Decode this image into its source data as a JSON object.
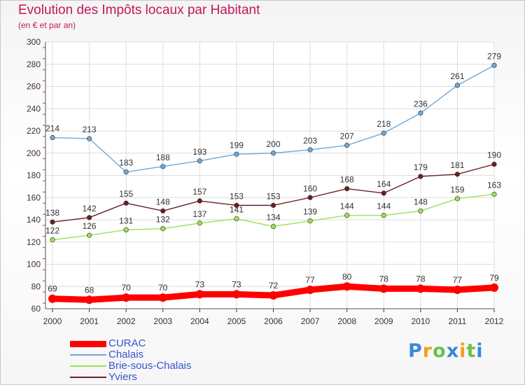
{
  "chart_data": {
    "type": "line",
    "title": "Evolution des Impôts locaux par Habitant",
    "subtitle": "(en € et par an)",
    "xlabel": "",
    "ylabel": "",
    "categories": [
      "2000",
      "2001",
      "2002",
      "2003",
      "2004",
      "2005",
      "2006",
      "2007",
      "2008",
      "2009",
      "2010",
      "2011",
      "2012"
    ],
    "ylim": [
      60,
      300
    ],
    "yticks": [
      60,
      80,
      100,
      120,
      140,
      160,
      180,
      200,
      220,
      240,
      260,
      280,
      300
    ],
    "grid": true,
    "legend_position": "bottom-left",
    "series": [
      {
        "name": "CURAC",
        "color": "#ff0000",
        "values": [
          69,
          68,
          70,
          70,
          73,
          73,
          72,
          77,
          80,
          78,
          78,
          77,
          79
        ]
      },
      {
        "name": "Chalais",
        "color": "#6fa8d6",
        "values": [
          214,
          213,
          183,
          188,
          193,
          199,
          200,
          203,
          207,
          218,
          236,
          261,
          279
        ]
      },
      {
        "name": "Brie-sous-Chalais",
        "color": "#9be15a",
        "values": [
          122,
          126,
          131,
          132,
          137,
          141,
          134,
          139,
          144,
          144,
          148,
          159,
          163
        ]
      },
      {
        "name": "Yviers",
        "color": "#6b1f24",
        "values": [
          138,
          142,
          155,
          148,
          157,
          153,
          153,
          160,
          168,
          164,
          179,
          181,
          190
        ]
      }
    ]
  },
  "logo": {
    "letters": [
      "P",
      "r",
      "o",
      "x",
      "i",
      "t",
      "i"
    ],
    "colors": [
      "#3a88d8",
      "#f0a21a",
      "#6cc04a",
      "#3a88d8",
      "#f0a21a",
      "#6cc04a",
      "#3a88d8"
    ]
  }
}
